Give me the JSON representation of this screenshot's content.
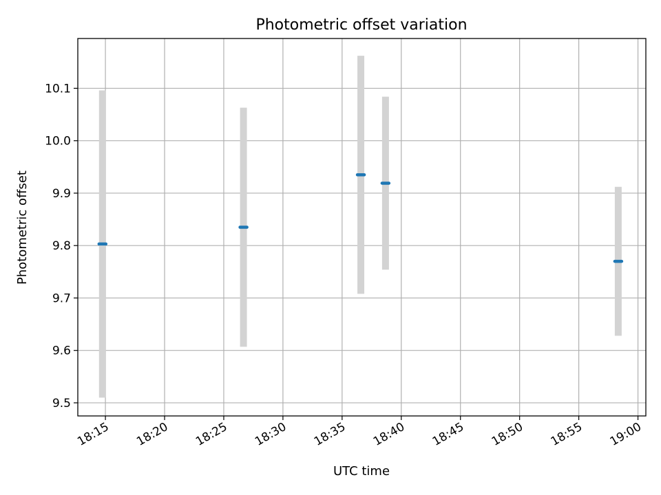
{
  "chart_data": {
    "type": "scatter",
    "title": "Photometric offset variation",
    "xlabel": "UTC time",
    "ylabel": "Photometric offset",
    "xlim": [
      "18:12:40",
      "19:00:40"
    ],
    "ylim": [
      9.475,
      10.195
    ],
    "x_ticks": [
      "18:15",
      "18:20",
      "18:25",
      "18:30",
      "18:35",
      "18:40",
      "18:45",
      "18:50",
      "18:55",
      "19:00"
    ],
    "y_ticks": [
      "9.5",
      "9.6",
      "9.7",
      "9.8",
      "9.9",
      "10.0",
      "10.1"
    ],
    "grid": true,
    "points": [
      {
        "time": "18:14:45",
        "value": 9.803,
        "error": 0.293
      },
      {
        "time": "18:26:40",
        "value": 9.835,
        "error": 0.228
      },
      {
        "time": "18:36:35",
        "value": 9.935,
        "error": 0.227
      },
      {
        "time": "18:38:40",
        "value": 9.919,
        "error": 0.165
      },
      {
        "time": "18:58:20",
        "value": 9.77,
        "error": 0.142
      }
    ],
    "colors": {
      "marker": "#1f77b4",
      "errorbar": "#d3d3d3",
      "grid": "#b0b0b0"
    }
  }
}
